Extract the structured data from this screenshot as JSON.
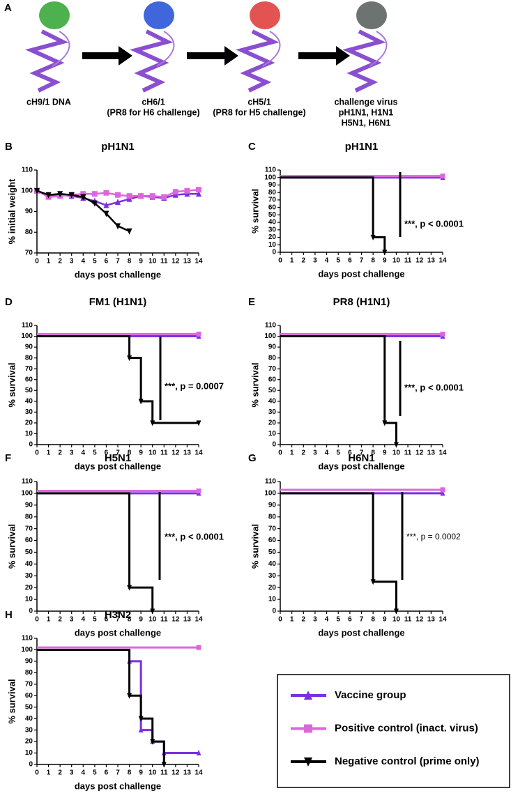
{
  "panel_a": {
    "label": "A",
    "captions": [
      [
        "cH9/1 DNA"
      ],
      [
        "cH6/1",
        "(PR8 for H6 challenge)"
      ],
      [
        "cH5/1",
        "(PR8 for H5 challenge)"
      ],
      [
        "challenge virus",
        "pH1N1, H1N1",
        "H5N1, H6N1"
      ]
    ]
  },
  "chart_data": [
    {
      "type": "line",
      "panel_label": "B",
      "title": "pH1N1",
      "x_label": "days post challenge",
      "y_label": "% initial weight",
      "x": [
        0,
        1,
        2,
        3,
        4,
        5,
        6,
        7,
        8,
        9,
        10,
        11,
        12,
        13,
        14
      ],
      "xlim": [
        0,
        14
      ],
      "xticks": [
        0,
        1,
        2,
        3,
        4,
        5,
        6,
        7,
        8,
        9,
        10,
        11,
        12,
        13,
        14
      ],
      "ylim": [
        70,
        110
      ],
      "yticks": [
        70,
        80,
        90,
        100,
        110
      ],
      "series": [
        {
          "name": "Vaccine group",
          "color": "#7b2fe0",
          "marker": "triangle-up",
          "values": [
            100,
            97.5,
            98,
            97.5,
            96.5,
            95,
            93,
            94.5,
            96,
            97.5,
            97,
            96.5,
            98,
            98.5,
            98.5
          ]
        },
        {
          "name": "Positive control (inact. virus)",
          "color": "#dd66dd",
          "marker": "square",
          "values": [
            100,
            97,
            97.5,
            98,
            98.5,
            98.5,
            99,
            98,
            97.5,
            97.5,
            97.5,
            97,
            99.5,
            100,
            100.5
          ]
        },
        {
          "name": "Negative control (prime only)",
          "color": "#000000",
          "marker": "triangle-down",
          "values": [
            100,
            98,
            98.5,
            98,
            97,
            94,
            89,
            83,
            80.5,
            null,
            null,
            null,
            null,
            null,
            null
          ]
        }
      ]
    },
    {
      "type": "step",
      "panel_label": "C",
      "title": "pH1N1",
      "x_label": "days post challenge",
      "y_label": "% survival",
      "annotation": "***, p < 0.0001",
      "xlim": [
        0,
        14
      ],
      "xticks": [
        0,
        1,
        2,
        3,
        4,
        5,
        6,
        7,
        8,
        9,
        10,
        11,
        12,
        13,
        14
      ],
      "ylim": [
        0,
        110
      ],
      "yticks": [
        0,
        10,
        20,
        30,
        40,
        50,
        60,
        70,
        80,
        90,
        100,
        110
      ],
      "series": [
        {
          "name": "Vaccine group",
          "color": "#7b2fe0",
          "marker": "triangle-up",
          "x": [
            0,
            14
          ],
          "values": [
            100,
            100
          ]
        },
        {
          "name": "Positive control (inact. virus)",
          "color": "#dd66dd",
          "marker": "square",
          "x": [
            0,
            14
          ],
          "values": [
            102,
            102
          ]
        },
        {
          "name": "Negative control (prime only)",
          "color": "#000000",
          "marker": "triangle-down",
          "x": [
            0,
            8,
            9
          ],
          "values": [
            100,
            20,
            0
          ]
        }
      ]
    },
    {
      "type": "step",
      "panel_label": "D",
      "title": "FM1 (H1N1)",
      "x_label": "days post challenge",
      "y_label": "% survival",
      "annotation": "***, p = 0.0007",
      "xlim": [
        0,
        14
      ],
      "xticks": [
        0,
        1,
        2,
        3,
        4,
        5,
        6,
        7,
        8,
        9,
        10,
        11,
        12,
        13,
        14
      ],
      "ylim": [
        0,
        110
      ],
      "yticks": [
        0,
        10,
        20,
        30,
        40,
        50,
        60,
        70,
        80,
        90,
        100,
        110
      ],
      "series": [
        {
          "name": "Vaccine group",
          "color": "#7b2fe0",
          "marker": "triangle-up",
          "x": [
            0,
            14
          ],
          "values": [
            100,
            100
          ]
        },
        {
          "name": "Positive control (inact. virus)",
          "color": "#dd66dd",
          "marker": "square",
          "x": [
            0,
            14
          ],
          "values": [
            102,
            102
          ]
        },
        {
          "name": "Negative control (prime only)",
          "color": "#000000",
          "marker": "triangle-down",
          "x": [
            0,
            8,
            9,
            10,
            14
          ],
          "values": [
            100,
            80,
            40,
            20,
            20
          ]
        }
      ]
    },
    {
      "type": "step",
      "panel_label": "E",
      "title": "PR8 (H1N1)",
      "x_label": "days post challenge",
      "y_label": "% survival",
      "annotation": "***, p < 0.0001",
      "xlim": [
        0,
        14
      ],
      "xticks": [
        0,
        1,
        2,
        3,
        4,
        5,
        6,
        7,
        8,
        9,
        10,
        11,
        12,
        13,
        14
      ],
      "ylim": [
        0,
        110
      ],
      "yticks": [
        0,
        10,
        20,
        30,
        40,
        50,
        60,
        70,
        80,
        90,
        100,
        110
      ],
      "series": [
        {
          "name": "Vaccine group",
          "color": "#7b2fe0",
          "marker": "triangle-up",
          "x": [
            0,
            14
          ],
          "values": [
            100,
            100
          ]
        },
        {
          "name": "Positive control (inact. virus)",
          "color": "#dd66dd",
          "marker": "square",
          "x": [
            0,
            14
          ],
          "values": [
            102,
            102
          ]
        },
        {
          "name": "Negative control (prime only)",
          "color": "#000000",
          "marker": "triangle-down",
          "x": [
            0,
            9,
            10
          ],
          "values": [
            100,
            20,
            0
          ]
        }
      ]
    },
    {
      "type": "step",
      "panel_label": "F",
      "title": "H5N1",
      "x_label": "days post challenge",
      "y_label": "% survival",
      "annotation": "***, p < 0.0001",
      "xlim": [
        0,
        14
      ],
      "xticks": [
        0,
        1,
        2,
        3,
        4,
        5,
        6,
        7,
        8,
        9,
        10,
        11,
        12,
        13,
        14
      ],
      "ylim": [
        0,
        110
      ],
      "yticks": [
        0,
        10,
        20,
        30,
        40,
        50,
        60,
        70,
        80,
        90,
        100,
        110
      ],
      "series": [
        {
          "name": "Vaccine group",
          "color": "#7b2fe0",
          "marker": "triangle-up",
          "x": [
            0,
            14
          ],
          "values": [
            100,
            100
          ]
        },
        {
          "name": "Positive control (inact. virus)",
          "color": "#dd66dd",
          "marker": "square",
          "x": [
            0,
            14
          ],
          "values": [
            102,
            102
          ]
        },
        {
          "name": "Negative control (prime only)",
          "color": "#000000",
          "marker": "triangle-down",
          "x": [
            0,
            8,
            10
          ],
          "values": [
            100,
            20,
            0
          ]
        }
      ]
    },
    {
      "type": "step",
      "panel_label": "G",
      "title": "H6N1",
      "x_label": "days post challenge",
      "y_label": "% survival",
      "annotation": "***, p = 0.0002",
      "xlim": [
        0,
        14
      ],
      "xticks": [
        0,
        1,
        2,
        3,
        4,
        5,
        6,
        7,
        8,
        9,
        10,
        11,
        12,
        13,
        14
      ],
      "ylim": [
        0,
        110
      ],
      "yticks": [
        0,
        10,
        20,
        30,
        40,
        50,
        60,
        70,
        80,
        90,
        100,
        110
      ],
      "series": [
        {
          "name": "Vaccine group",
          "color": "#7b2fe0",
          "marker": "triangle-up",
          "x": [
            0,
            14
          ],
          "values": [
            100,
            100
          ]
        },
        {
          "name": "Positive control (inact. virus)",
          "color": "#dd66dd",
          "marker": "square",
          "x": [
            0,
            14
          ],
          "values": [
            103,
            103
          ]
        },
        {
          "name": "Negative control (prime only)",
          "color": "#000000",
          "marker": "triangle-down",
          "x": [
            0,
            8,
            10
          ],
          "values": [
            100,
            25,
            0
          ]
        }
      ]
    },
    {
      "type": "step",
      "panel_label": "H",
      "title": "H3N2",
      "x_label": "days post challenge",
      "y_label": "% survival",
      "xlim": [
        0,
        14
      ],
      "xticks": [
        0,
        1,
        2,
        3,
        4,
        5,
        6,
        7,
        8,
        9,
        10,
        11,
        12,
        13,
        14
      ],
      "ylim": [
        0,
        110
      ],
      "yticks": [
        0,
        10,
        20,
        30,
        40,
        50,
        60,
        70,
        80,
        90,
        100,
        110
      ],
      "series": [
        {
          "name": "Vaccine group",
          "color": "#7b2fe0",
          "marker": "triangle-up",
          "x": [
            0,
            8,
            9,
            10,
            11,
            14
          ],
          "values": [
            100,
            90,
            30,
            20,
            10,
            10
          ]
        },
        {
          "name": "Positive control (inact. virus)",
          "color": "#dd66dd",
          "marker": "square",
          "x": [
            0,
            14
          ],
          "values": [
            102,
            102
          ]
        },
        {
          "name": "Negative control (prime only)",
          "color": "#000000",
          "marker": "triangle-down",
          "x": [
            0,
            8,
            9,
            10,
            11
          ],
          "values": [
            100,
            60,
            40,
            20,
            0
          ]
        }
      ]
    }
  ]
}
